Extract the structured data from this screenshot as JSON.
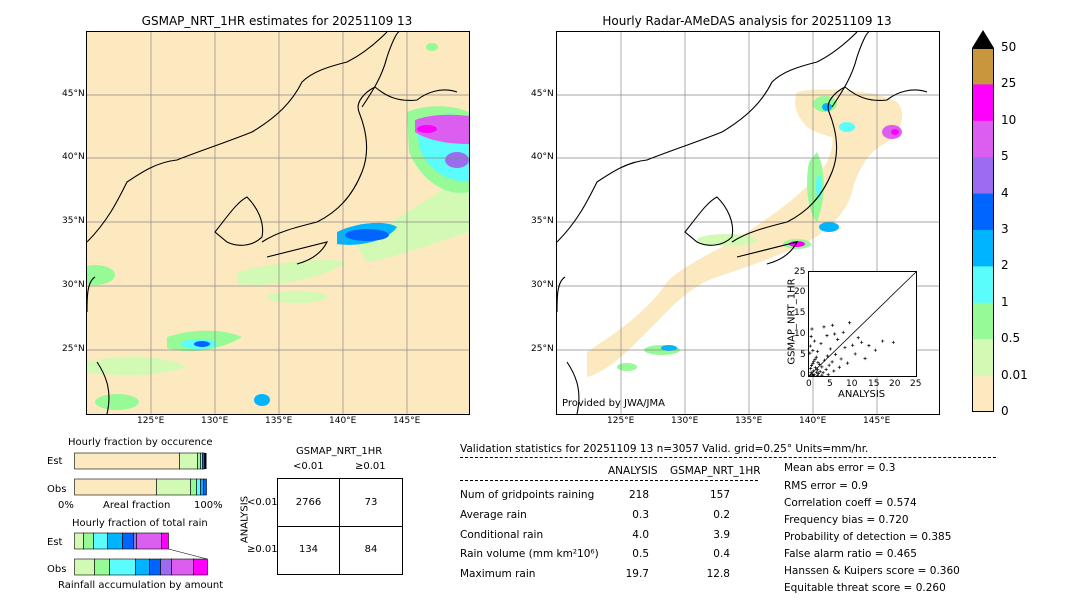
{
  "maps": {
    "left_title": "GSMAP_NRT_1HR estimates for 20251109 13",
    "right_title": "Hourly Radar-AMeDAS analysis for 20251109 13",
    "lat_labels": [
      "45°N",
      "40°N",
      "35°N",
      "30°N",
      "25°N"
    ],
    "lon_labels": [
      "125°E",
      "130°E",
      "135°E",
      "140°E",
      "145°E"
    ],
    "credit": "Provided by JWA/JMA"
  },
  "colorbar": {
    "labels": [
      "50",
      "25",
      "10",
      "5",
      "4",
      "3",
      "2",
      "1",
      "0.5",
      "0.01",
      "0"
    ],
    "colors": [
      "#c8963c",
      "#ff00ff",
      "#dc5ef0",
      "#9c6cf0",
      "#0064ff",
      "#00b4ff",
      "#5afcfc",
      "#96fa96",
      "#d2fab4",
      "#fde9c0"
    ]
  },
  "scatter": {
    "xlabel": "ANALYSIS",
    "ylabel": "GSMAP_NRT_1HR",
    "ticks": [
      "0",
      "5",
      "10",
      "15",
      "20",
      "25"
    ]
  },
  "occurrence": {
    "title": "Hourly fraction by occurence",
    "est_label": "Est",
    "obs_label": "Obs",
    "axis_left": "0%",
    "axis_mid": "Areal fraction",
    "axis_right": "100%"
  },
  "total_rain": {
    "title": "Hourly fraction of total rain",
    "est_label": "Est",
    "obs_label": "Obs",
    "footer": "Rainfall accumulation by amount"
  },
  "contingency": {
    "title": "GSMAP_NRT_1HR",
    "col_lt": "<0.01",
    "col_ge": "≥0.01",
    "row_axis": "ANALYSIS",
    "row_lt": "<0.01",
    "row_ge": "≥0.01",
    "a": "2766",
    "b": "73",
    "c": "134",
    "d": "84"
  },
  "validation": {
    "header": "Validation statistics for 20251109 13  n=3057 Valid. grid=0.25° Units=mm/hr.",
    "col_analysis": "ANALYSIS",
    "col_gsmap": "GSMAP_NRT_1HR",
    "rows": [
      {
        "label": "Num of gridpoints raining",
        "analysis": "218",
        "gsmap": "157"
      },
      {
        "label": "Average rain",
        "analysis": "0.3",
        "gsmap": "0.2"
      },
      {
        "label": "Conditional rain",
        "analysis": "4.0",
        "gsmap": "3.9"
      },
      {
        "label": "Rain volume (mm km²10⁶)",
        "analysis": "0.5",
        "gsmap": "0.4"
      },
      {
        "label": "Maximum rain",
        "analysis": "19.7",
        "gsmap": "12.8"
      }
    ],
    "scores": [
      "Mean abs error =    0.3",
      "RMS error =    0.9",
      "Correlation coeff =  0.574",
      "Frequency bias =  0.720",
      "Probability of detection =  0.385",
      "False alarm ratio =  0.465",
      "Hanssen & Kuipers score =  0.360",
      "Equitable threat score =  0.260"
    ]
  },
  "chart_data": {
    "type": "scatter",
    "xlabel": "ANALYSIS",
    "ylabel": "GSMAP_NRT_1HR",
    "xlim": [
      0,
      25
    ],
    "ylim": [
      0,
      25
    ],
    "points": [
      [
        0.3,
        0.2
      ],
      [
        0.5,
        0.8
      ],
      [
        0.8,
        0.4
      ],
      [
        1,
        1.2
      ],
      [
        1.2,
        0.3
      ],
      [
        1.5,
        2
      ],
      [
        1.8,
        0.9
      ],
      [
        2,
        1.5
      ],
      [
        2.2,
        0.6
      ],
      [
        2.5,
        2.8
      ],
      [
        0.4,
        1.8
      ],
      [
        0.6,
        2.5
      ],
      [
        0.9,
        3
      ],
      [
        1.1,
        3.5
      ],
      [
        1.4,
        4
      ],
      [
        1.7,
        4.5
      ],
      [
        2.1,
        3.2
      ],
      [
        2.6,
        1.1
      ],
      [
        3,
        2.2
      ],
      [
        3.3,
        0.8
      ],
      [
        3.6,
        3.8
      ],
      [
        4,
        1.6
      ],
      [
        4.3,
        4.8
      ],
      [
        4.7,
        2.6
      ],
      [
        5,
        6.5
      ],
      [
        5.4,
        3.4
      ],
      [
        5.8,
        1.2
      ],
      [
        6.2,
        5.2
      ],
      [
        6.7,
        8.8
      ],
      [
        7.1,
        2.1
      ],
      [
        7.5,
        4.1
      ],
      [
        8,
        10.5
      ],
      [
        8.4,
        6.8
      ],
      [
        9,
        3.1
      ],
      [
        9.5,
        12.8
      ],
      [
        10.2,
        7.4
      ],
      [
        10.8,
        5.3
      ],
      [
        11.5,
        9.2
      ],
      [
        12.3,
        8.1
      ],
      [
        13.1,
        4.2
      ],
      [
        14,
        7.3
      ],
      [
        15.5,
        6.2
      ],
      [
        17.2,
        8.4
      ],
      [
        19.7,
        8.1
      ],
      [
        0.2,
        5.5
      ],
      [
        0.3,
        7.2
      ],
      [
        0.5,
        9.5
      ],
      [
        0.7,
        11.3
      ],
      [
        0.9,
        6.1
      ],
      [
        1.3,
        8.4
      ],
      [
        2,
        5.9
      ],
      [
        2.8,
        7.8
      ],
      [
        3.5,
        11.8
      ],
      [
        4.2,
        9.7
      ],
      [
        5.5,
        12.2
      ],
      [
        6,
        10.1
      ],
      [
        1,
        0.1
      ],
      [
        2,
        0.1
      ],
      [
        3,
        0.2
      ],
      [
        4.5,
        0.3
      ]
    ]
  }
}
